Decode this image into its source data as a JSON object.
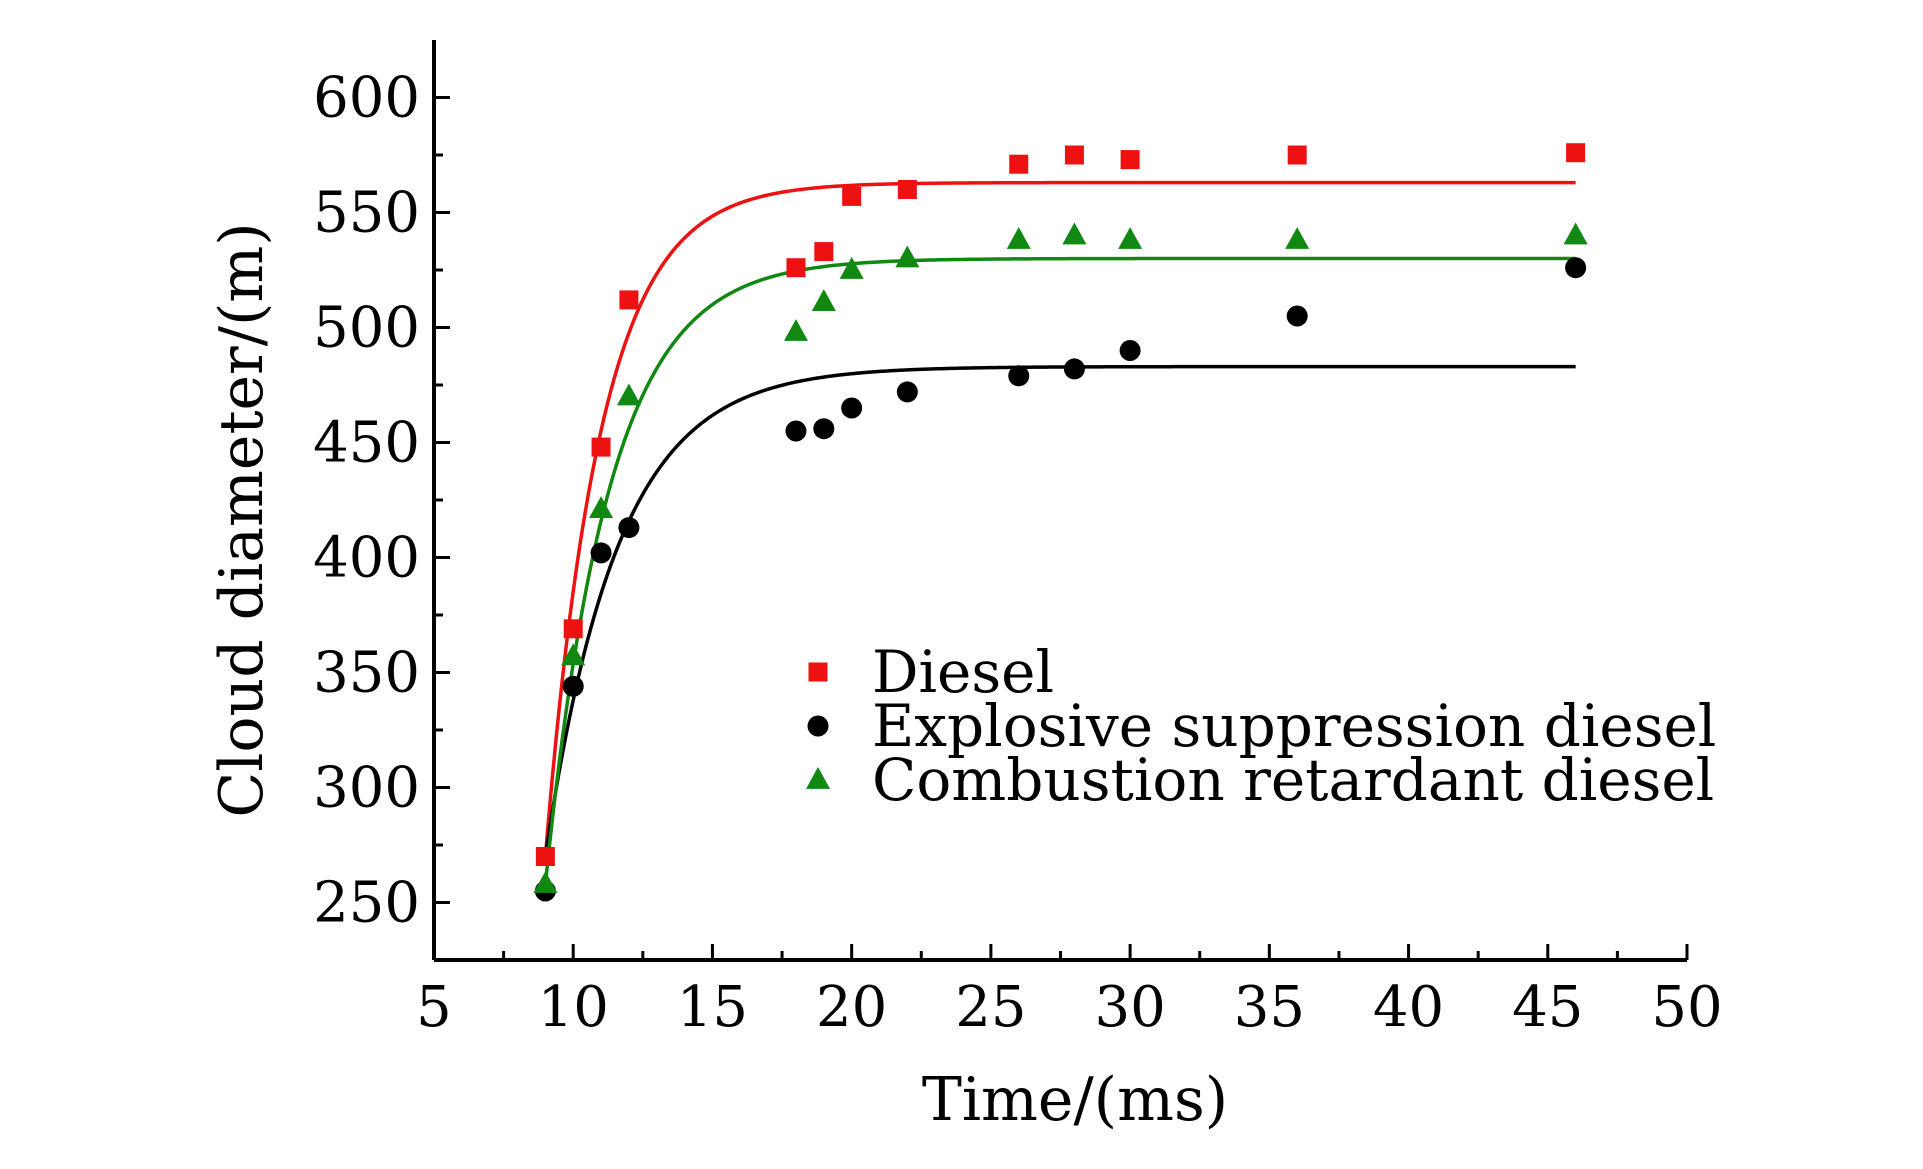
{
  "chart_data": {
    "type": "scatter",
    "title": "",
    "xlabel": "Time/(ms)",
    "ylabel": "Cloud diameter/(m)",
    "xlim": [
      5,
      50
    ],
    "ylim": [
      225,
      625
    ],
    "xticks": [
      5,
      10,
      15,
      20,
      25,
      30,
      35,
      40,
      45,
      50
    ],
    "yticks": [
      250,
      300,
      350,
      400,
      450,
      500,
      550,
      600
    ],
    "x_minor_step": 2.5,
    "y_minor_step": 25,
    "grid": false,
    "legend_position": "center-right",
    "series": [
      {
        "name": "Diesel",
        "marker": "square",
        "color": "#ee1111",
        "x": [
          9,
          10,
          11,
          12,
          18,
          19,
          20,
          22,
          26,
          28,
          30,
          36,
          46
        ],
        "y": [
          270,
          369,
          448,
          512,
          526,
          533,
          557,
          560,
          571,
          575,
          573,
          575,
          576
        ],
        "fit": {
          "y0": 270,
          "asymptote": 563,
          "tau": 2.0,
          "x_start": 9,
          "x_end": 46
        }
      },
      {
        "name": "Explosive suppression diesel",
        "marker": "circle",
        "color": "#000000",
        "x": [
          9,
          10,
          11,
          12,
          18,
          19,
          20,
          22,
          26,
          28,
          30,
          36,
          46
        ],
        "y": [
          255,
          344,
          402,
          413,
          455,
          456,
          465,
          472,
          479,
          482,
          490,
          505,
          526
        ],
        "fit": {
          "y0": 270,
          "asymptote": 483,
          "tau": 2.6,
          "x_start": 9,
          "x_end": 46
        }
      },
      {
        "name": "Combustion retardant diesel",
        "marker": "triangle",
        "color": "#118811",
        "x": [
          9,
          10,
          11,
          12,
          18,
          19,
          20,
          22,
          26,
          28,
          30,
          36,
          46
        ],
        "y": [
          258,
          357,
          421,
          470,
          498,
          511,
          525,
          530,
          538,
          540,
          538,
          538,
          540
        ],
        "fit": {
          "y0": 258,
          "asymptote": 530,
          "tau": 2.3,
          "x_start": 9,
          "x_end": 46
        }
      }
    ]
  }
}
